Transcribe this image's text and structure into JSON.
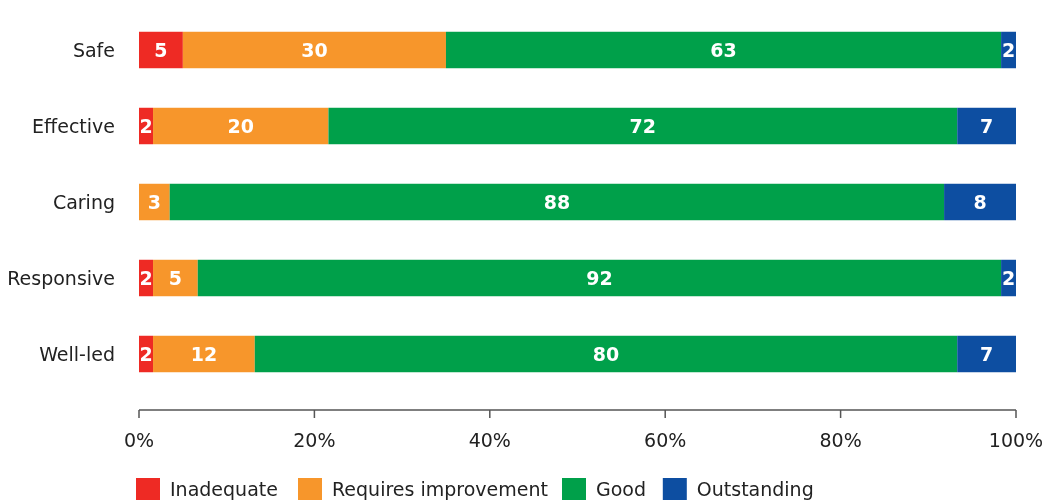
{
  "chart_data": {
    "type": "bar",
    "orientation": "horizontal",
    "stacked": true,
    "categories": [
      "Safe",
      "Effective",
      "Caring",
      "Responsive",
      "Well-led"
    ],
    "series": [
      {
        "name": "Inadequate",
        "color": "#ee2a24",
        "values": [
          5,
          1.6,
          null,
          1.6,
          1.6
        ],
        "value_labels": [
          "5",
          "2",
          null,
          "2",
          "2"
        ]
      },
      {
        "name": "Requires improvement",
        "color": "#f7962b",
        "values": [
          30,
          20,
          3.5,
          5.1,
          11.6
        ],
        "value_labels": [
          "30",
          "20",
          "3",
          "5",
          "12"
        ]
      },
      {
        "name": "Good",
        "color": "#00a04a",
        "values": [
          63.3,
          71.7,
          88.3,
          91.6,
          80.1
        ],
        "value_labels": [
          "63",
          "72",
          "88",
          "92",
          "80"
        ]
      },
      {
        "name": "Outstanding",
        "color": "#0d4ea1",
        "values": [
          1.7,
          6.7,
          8.2,
          1.7,
          6.7
        ],
        "value_labels": [
          "2",
          "7",
          "8",
          "2",
          "7"
        ]
      }
    ],
    "xlim": [
      0,
      100
    ],
    "xticks": [
      {
        "value": 0,
        "label": "0%"
      },
      {
        "value": 20,
        "label": "20%"
      },
      {
        "value": 40,
        "label": "40%"
      },
      {
        "value": 60,
        "label": "60%"
      },
      {
        "value": 80,
        "label": "80%"
      },
      {
        "value": 100,
        "label": "100%"
      }
    ],
    "grid": false,
    "legend": "bottom"
  }
}
